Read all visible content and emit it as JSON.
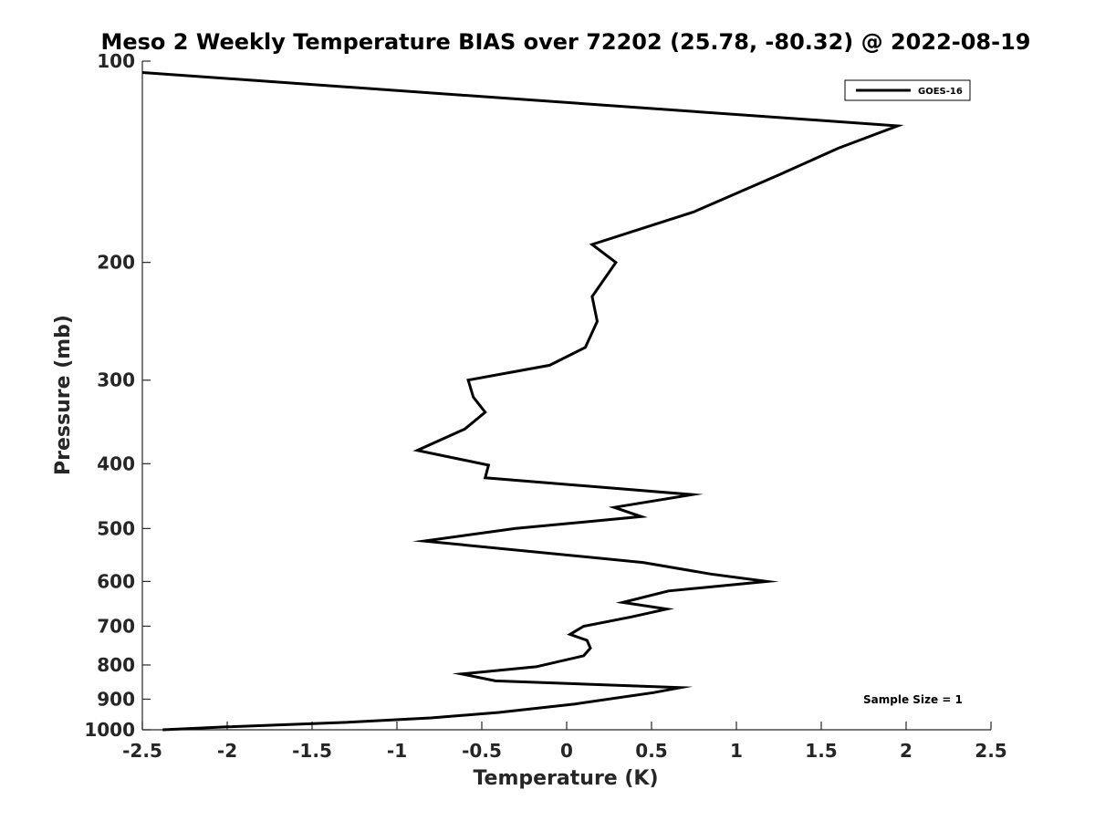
{
  "chart_data": {
    "type": "line",
    "title": "Meso 2 Weekly Temperature BIAS over 72202 (25.78, -80.32) @ 2022-08-19",
    "xlabel": "Temperature (K)",
    "ylabel": "Pressure (mb)",
    "xlim": [
      -2.5,
      2.5
    ],
    "ylim": [
      100,
      1000
    ],
    "y_scale": "log",
    "y_reversed": true,
    "x_ticks": [
      "-2.5",
      "-2",
      "-1.5",
      "-1",
      "-0.5",
      "0",
      "0.5",
      "1",
      "1.5",
      "2",
      "2.5"
    ],
    "y_ticks": [
      "100",
      "200",
      "300",
      "400",
      "500",
      "600",
      "700",
      "800",
      "900",
      "1000"
    ],
    "legend_position": "top-right",
    "annotation": "Sample Size = 1",
    "grid": false,
    "series": [
      {
        "name": "GOES-16",
        "color": "#000000",
        "points": [
          {
            "x": -2.5,
            "y": 104
          },
          {
            "x": 1.95,
            "y": 125
          },
          {
            "x": 1.6,
            "y": 135
          },
          {
            "x": 1.25,
            "y": 148
          },
          {
            "x": 0.75,
            "y": 168
          },
          {
            "x": 0.15,
            "y": 188
          },
          {
            "x": 0.29,
            "y": 200
          },
          {
            "x": 0.15,
            "y": 225
          },
          {
            "x": 0.18,
            "y": 245
          },
          {
            "x": 0.11,
            "y": 268
          },
          {
            "x": -0.1,
            "y": 285
          },
          {
            "x": -0.58,
            "y": 300
          },
          {
            "x": -0.55,
            "y": 318
          },
          {
            "x": -0.48,
            "y": 335
          },
          {
            "x": -0.6,
            "y": 355
          },
          {
            "x": -0.88,
            "y": 382
          },
          {
            "x": -0.46,
            "y": 402
          },
          {
            "x": -0.48,
            "y": 420
          },
          {
            "x": 0.74,
            "y": 445
          },
          {
            "x": 0.28,
            "y": 465
          },
          {
            "x": 0.44,
            "y": 480
          },
          {
            "x": -0.3,
            "y": 500
          },
          {
            "x": -0.84,
            "y": 522
          },
          {
            "x": 0.45,
            "y": 562
          },
          {
            "x": 0.85,
            "y": 585
          },
          {
            "x": 1.18,
            "y": 600
          },
          {
            "x": 0.6,
            "y": 620
          },
          {
            "x": 0.33,
            "y": 645
          },
          {
            "x": 0.59,
            "y": 660
          },
          {
            "x": 0.38,
            "y": 678
          },
          {
            "x": 0.1,
            "y": 700
          },
          {
            "x": 0.02,
            "y": 720
          },
          {
            "x": 0.12,
            "y": 735
          },
          {
            "x": 0.14,
            "y": 755
          },
          {
            "x": 0.1,
            "y": 775
          },
          {
            "x": -0.18,
            "y": 805
          },
          {
            "x": -0.62,
            "y": 825
          },
          {
            "x": -0.42,
            "y": 845
          },
          {
            "x": 0.67,
            "y": 865
          },
          {
            "x": 0.51,
            "y": 880
          },
          {
            "x": 0.05,
            "y": 915
          },
          {
            "x": -0.4,
            "y": 942
          },
          {
            "x": -0.8,
            "y": 960
          },
          {
            "x": -1.3,
            "y": 975
          },
          {
            "x": -2.0,
            "y": 990
          },
          {
            "x": -2.38,
            "y": 1000
          }
        ]
      }
    ]
  }
}
